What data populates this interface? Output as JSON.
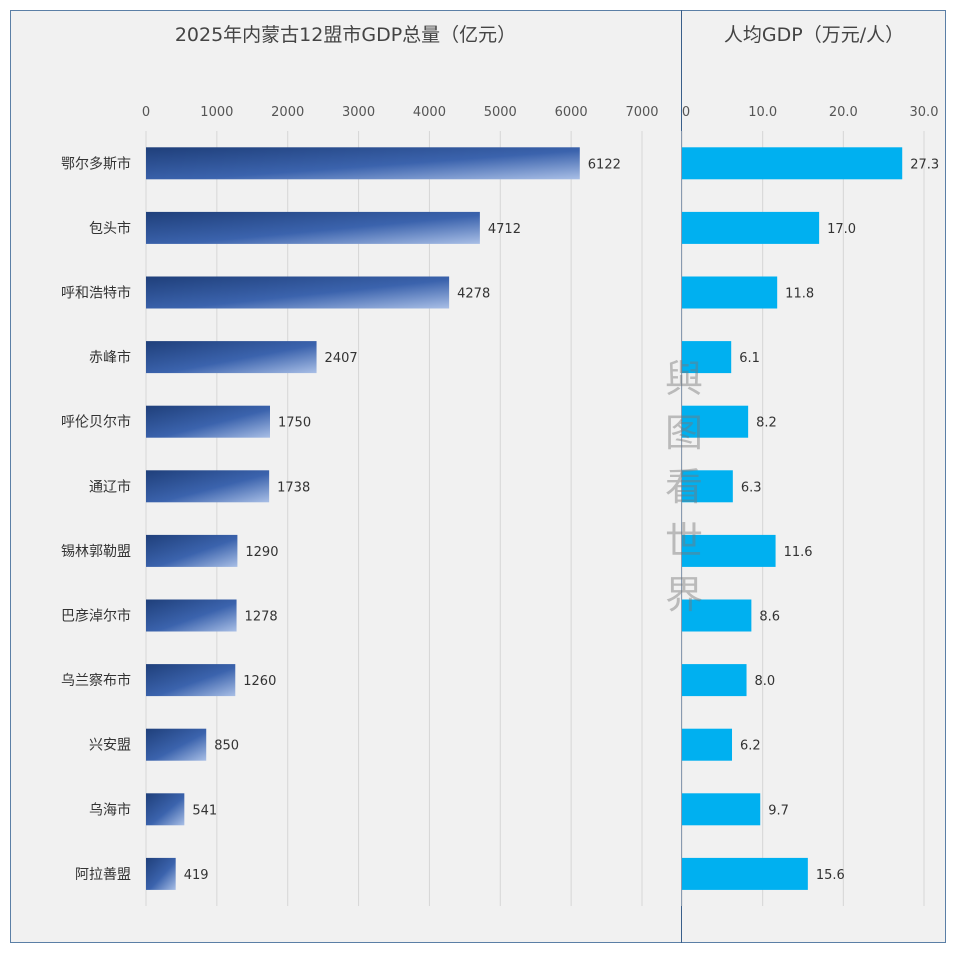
{
  "watermark": [
    "與",
    "图",
    "看",
    "世",
    "界"
  ],
  "chart_data": [
    {
      "type": "bar",
      "orientation": "horizontal",
      "title": "2025年内蒙古12盟市GDP总量（亿元）",
      "categories": [
        "鄂尔多斯市",
        "包头市",
        "呼和浩特市",
        "赤峰市",
        "呼伦贝尔市",
        "通辽市",
        "锡林郭勒盟",
        "巴彦淖尔市",
        "乌兰察布市",
        "兴安盟",
        "乌海市",
        "阿拉善盟"
      ],
      "values": [
        6122,
        4712,
        4278,
        2407,
        1750,
        1738,
        1290,
        1278,
        1260,
        850,
        541,
        419
      ],
      "xlim": [
        0,
        7000
      ],
      "ticks": [
        "0",
        "1000",
        "2000",
        "3000",
        "4000",
        "5000",
        "6000",
        "7000"
      ],
      "axis_position": "top",
      "grid": true,
      "bar_color": "#2f5597"
    },
    {
      "type": "bar",
      "orientation": "horizontal",
      "title": "人均GDP（万元/人）",
      "categories": [
        "鄂尔多斯市",
        "包头市",
        "呼和浩特市",
        "赤峰市",
        "呼伦贝尔市",
        "通辽市",
        "锡林郭勒盟",
        "巴彦淖尔市",
        "乌兰察布市",
        "兴安盟",
        "乌海市",
        "阿拉善盟"
      ],
      "values": [
        27.3,
        17.0,
        11.8,
        6.1,
        8.2,
        6.3,
        11.6,
        8.6,
        8.0,
        6.2,
        9.7,
        15.6
      ],
      "xlim": [
        0,
        30
      ],
      "ticks": [
        "0",
        "10.0",
        "20.0",
        "30.0"
      ],
      "axis_position": "top",
      "grid": true,
      "bar_color": "#00b0f0"
    }
  ]
}
